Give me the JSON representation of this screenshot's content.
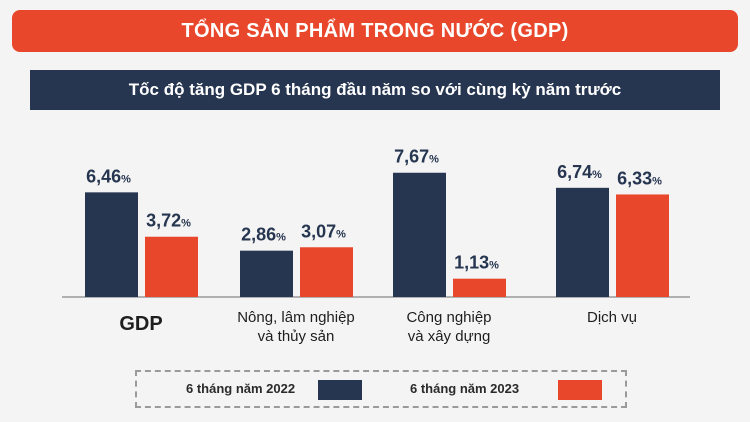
{
  "header": {
    "title": "TỔNG SẢN PHẨM TRONG NƯỚC (GDP)",
    "subtitle": "Tốc độ tăng GDP 6 tháng đầu năm so với cùng kỳ năm trước"
  },
  "colors": {
    "accent_red": "#e8472b",
    "navy": "#263550",
    "series_2022": "#263550",
    "series_2023": "#e8472b"
  },
  "chart_data": {
    "type": "bar",
    "title": "Tốc độ tăng GDP 6 tháng đầu năm so với cùng kỳ năm trước",
    "categories": [
      "GDP",
      "Nông, lâm nghiệp\nvà thủy sản",
      "Công nghiệp\nvà xây dựng",
      "Dịch vụ"
    ],
    "series": [
      {
        "name": "6 tháng năm 2022",
        "values": [
          6.46,
          2.86,
          7.67,
          6.74
        ],
        "labels": [
          "6,46",
          "2,86",
          "7,67",
          "6,74"
        ]
      },
      {
        "name": "6 tháng năm 2023",
        "values": [
          3.72,
          3.07,
          1.13,
          6.33
        ],
        "labels": [
          "3,72",
          "3,07",
          "1,13",
          "6,33"
        ]
      }
    ],
    "unit": "%",
    "ylim": [
      0,
      8
    ],
    "grid": false,
    "legend_position": "bottom"
  }
}
